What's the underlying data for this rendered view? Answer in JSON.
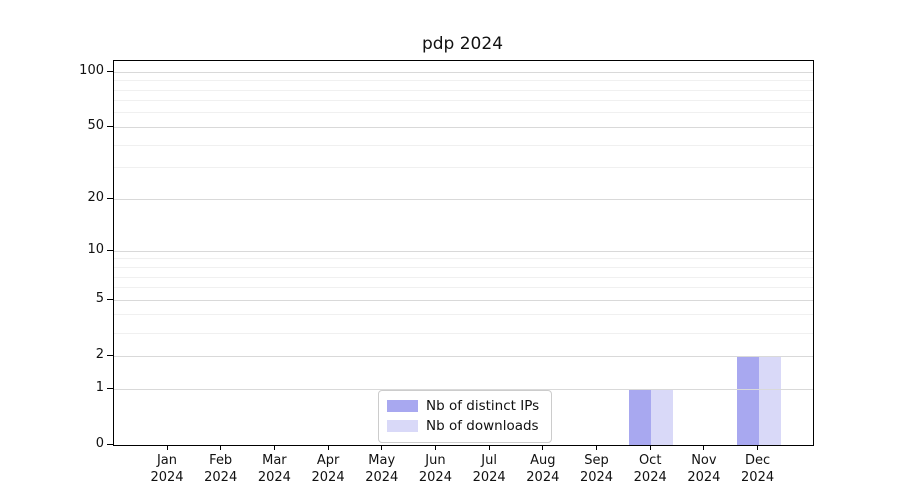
{
  "chart_data": {
    "type": "bar",
    "title": "pdp 2024",
    "categories": [
      "Jan 2024",
      "Feb 2024",
      "Mar 2024",
      "Apr 2024",
      "May 2024",
      "Jun 2024",
      "Jul 2024",
      "Aug 2024",
      "Sep 2024",
      "Oct 2024",
      "Nov 2024",
      "Dec 2024"
    ],
    "series": [
      {
        "name": "Nb of distinct IPs",
        "color": "#a8a8f0",
        "values": [
          0,
          0,
          0,
          0,
          0,
          0,
          0,
          0,
          0,
          1,
          0,
          2
        ]
      },
      {
        "name": "Nb of downloads",
        "color": "#d9d9f8",
        "values": [
          0,
          0,
          0,
          0,
          0,
          0,
          0,
          0,
          0,
          1,
          0,
          2
        ]
      }
    ],
    "xlabel": "",
    "ylabel": "",
    "y_scale": "log1p",
    "ylim": [
      0,
      115
    ],
    "y_ticks": [
      0,
      1,
      2,
      5,
      10,
      20,
      50,
      100
    ],
    "y_minor_ticks": [
      3,
      4,
      6,
      7,
      8,
      9,
      30,
      40,
      60,
      70,
      80,
      90
    ],
    "grid": "horizontal",
    "legend_position": "lower-center-inside",
    "colors": {
      "axis": "#000000",
      "major_grid": "#d9d9d9",
      "minor_grid": "#f0f0f0",
      "text": "#111111",
      "legend_border": "#cccccc"
    }
  }
}
